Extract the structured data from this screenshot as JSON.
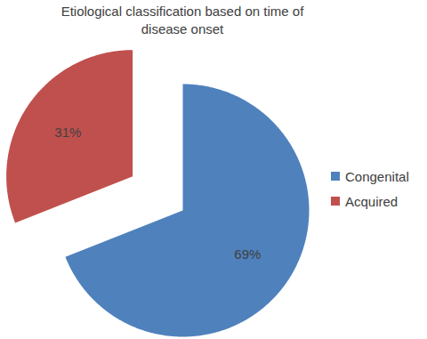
{
  "chart_data": {
    "type": "pie",
    "title": "Etiological classification based on time of disease onset",
    "categories": [
      "Congenital",
      "Acquired"
    ],
    "values": [
      69,
      31
    ],
    "value_labels": [
      "69%",
      "31%"
    ],
    "colors": [
      "#4f81bd",
      "#c0504d"
    ],
    "data_labels": true,
    "legend": "right"
  }
}
